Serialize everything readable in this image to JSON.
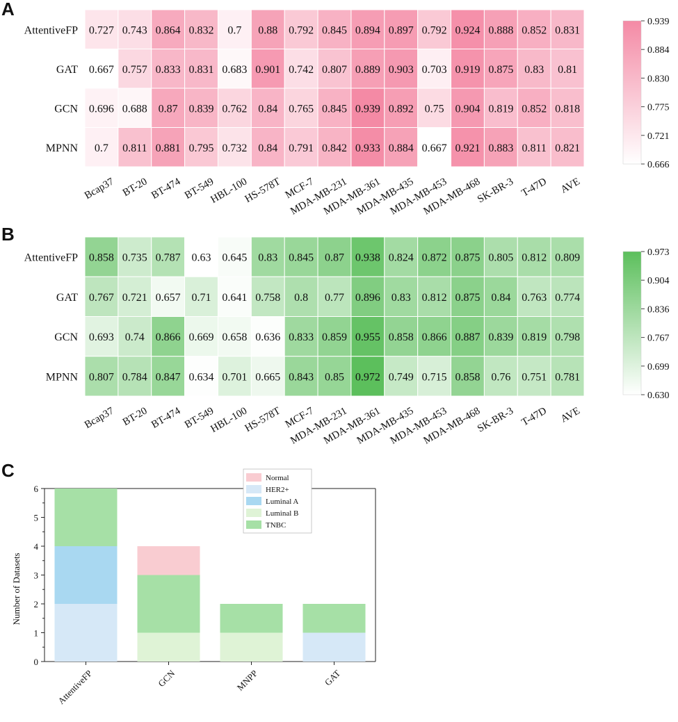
{
  "panels": {
    "a": "A",
    "b": "B",
    "c": "C"
  },
  "chart_data": [
    {
      "type": "heatmap",
      "panel": "A",
      "colormap": {
        "low": "#ffffff",
        "high": "#f48aa5"
      },
      "rows": [
        "AttentiveFP",
        "GAT",
        "GCN",
        "MPNN"
      ],
      "columns": [
        "Bcap37",
        "BT-20",
        "BT-474",
        "BT-549",
        "HBL-100",
        "HS-578T",
        "MCF-7",
        "MDA-MB-231",
        "MDA-MB-361",
        "MDA-MB-435",
        "MDA-MB-453",
        "MDA-MB-468",
        "SK-BR-3",
        "T-47D",
        "AVE"
      ],
      "values": [
        [
          0.727,
          0.743,
          0.864,
          0.832,
          0.7,
          0.88,
          0.792,
          0.845,
          0.894,
          0.897,
          0.792,
          0.924,
          0.888,
          0.852,
          0.831
        ],
        [
          0.667,
          0.757,
          0.833,
          0.831,
          0.683,
          0.901,
          0.742,
          0.807,
          0.889,
          0.903,
          0.703,
          0.919,
          0.875,
          0.83,
          0.81
        ],
        [
          0.696,
          0.688,
          0.87,
          0.839,
          0.762,
          0.84,
          0.765,
          0.845,
          0.939,
          0.892,
          0.75,
          0.904,
          0.819,
          0.852,
          0.818
        ],
        [
          0.7,
          0.811,
          0.881,
          0.795,
          0.732,
          0.84,
          0.791,
          0.842,
          0.933,
          0.884,
          0.667,
          0.921,
          0.883,
          0.811,
          0.821
        ]
      ],
      "colorbar": {
        "min": 0.666,
        "max": 0.939,
        "ticks": [
          "0.939",
          "0.884",
          "0.830",
          "0.775",
          "0.721",
          "0.666"
        ]
      }
    },
    {
      "type": "heatmap",
      "panel": "B",
      "colormap": {
        "low": "#ffffff",
        "high": "#5cbf5c"
      },
      "rows": [
        "AttentiveFP",
        "GAT",
        "GCN",
        "MPNN"
      ],
      "columns": [
        "Bcap37",
        "BT-20",
        "BT-474",
        "BT-549",
        "HBL-100",
        "HS-578T",
        "MCF-7",
        "MDA-MB-231",
        "MDA-MB-361",
        "MDA-MB-435",
        "MDA-MB-453",
        "MDA-MB-468",
        "SK-BR-3",
        "T-47D",
        "AVE"
      ],
      "values": [
        [
          0.858,
          0.735,
          0.787,
          0.63,
          0.645,
          0.83,
          0.845,
          0.87,
          0.938,
          0.824,
          0.872,
          0.875,
          0.805,
          0.812,
          0.809
        ],
        [
          0.767,
          0.721,
          0.657,
          0.71,
          0.641,
          0.758,
          0.8,
          0.77,
          0.896,
          0.83,
          0.812,
          0.875,
          0.84,
          0.763,
          0.774
        ],
        [
          0.693,
          0.74,
          0.866,
          0.669,
          0.658,
          0.636,
          0.833,
          0.859,
          0.955,
          0.858,
          0.866,
          0.887,
          0.839,
          0.819,
          0.798
        ],
        [
          0.807,
          0.784,
          0.847,
          0.634,
          0.701,
          0.665,
          0.843,
          0.85,
          0.972,
          0.749,
          0.715,
          0.858,
          0.76,
          0.751,
          0.781
        ]
      ],
      "colorbar": {
        "min": 0.63,
        "max": 0.973,
        "ticks": [
          "0.973",
          "0.904",
          "0.836",
          "0.767",
          "0.699",
          "0.630"
        ]
      }
    },
    {
      "type": "bar",
      "stacked": true,
      "panel": "C",
      "categories": [
        "AttentiveFP",
        "GCN",
        "MNPP",
        "GAT"
      ],
      "ylabel": "Number of Datasets",
      "xlabel": "",
      "ylim": [
        0,
        6
      ],
      "yticks": [
        "0",
        "1",
        "2",
        "3",
        "4",
        "5",
        "6"
      ],
      "legend_position": "top-right",
      "series": [
        {
          "name": "HER2+",
          "color": "#d6e8f7",
          "values": [
            2,
            0,
            0,
            1
          ]
        },
        {
          "name": "Luminal A",
          "color": "#a9d8f1",
          "values": [
            2,
            0,
            0,
            0
          ]
        },
        {
          "name": "Luminal B",
          "color": "#dff3d6",
          "values": [
            0,
            1,
            1,
            0
          ]
        },
        {
          "name": "TNBC",
          "color": "#a6e0a6",
          "values": [
            2,
            2,
            1,
            1
          ]
        },
        {
          "name": "Normal",
          "color": "#f9ccd1",
          "values": [
            0,
            1,
            0,
            0
          ]
        }
      ],
      "legend_order": [
        "Normal",
        "HER2+",
        "Luminal A",
        "Luminal B",
        "TNBC"
      ]
    }
  ]
}
